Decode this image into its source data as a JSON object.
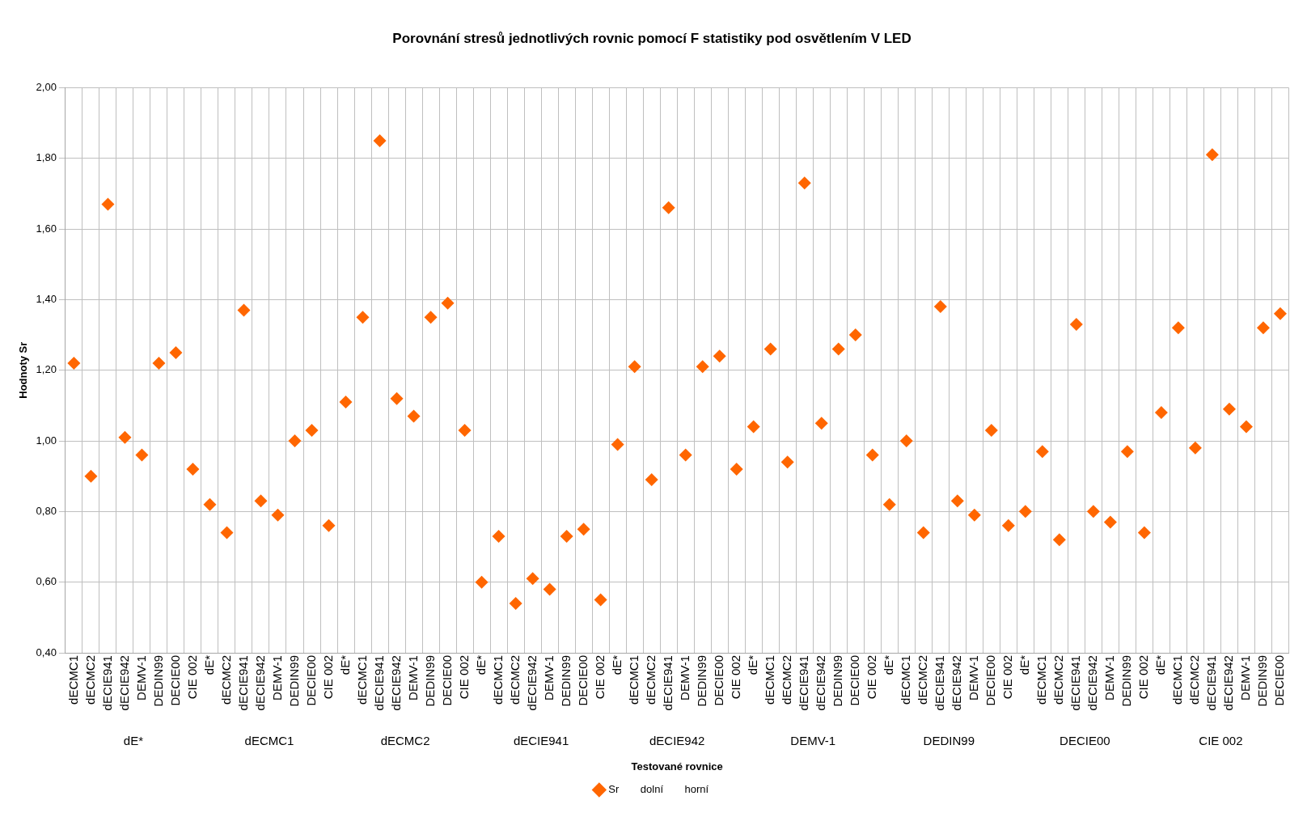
{
  "chart_data": {
    "type": "scatter",
    "title": "Porovnání stresů jednotlivých rovnic pomocí F statistiky pod osvětlením V LED",
    "xlabel": "Testované rovnice",
    "ylabel": "Hodnoty Sr",
    "categories": [
      "dECMC1",
      "dECMC2",
      "dECIE941",
      "dECIE942",
      "DEMV-1",
      "DEDIN99",
      "DECIE00",
      "CIE 002",
      "dE*",
      "dECMC2",
      "dECIE941",
      "dECIE942",
      "DEMV-1",
      "DEDIN99",
      "DECIE00",
      "CIE 002",
      "dE*",
      "dECMC1",
      "dECIE941",
      "dECIE942",
      "DEMV-1",
      "DEDIN99",
      "DECIE00",
      "CIE 002",
      "dE*",
      "dECMC1",
      "dECMC2",
      "dECIE942",
      "DEMV-1",
      "DEDIN99",
      "DECIE00",
      "CIE 002",
      "dE*",
      "dECMC1",
      "dECMC2",
      "dECIE941",
      "DEMV-1",
      "DEDIN99",
      "DECIE00",
      "CIE 002",
      "dE*",
      "dECMC1",
      "dECMC2",
      "dECIE941",
      "dECIE942",
      "DEDIN99",
      "DECIE00",
      "CIE 002",
      "dE*",
      "dECMC1",
      "dECMC2",
      "dECIE941",
      "dECIE942",
      "DEMV-1",
      "DECIE00",
      "CIE 002",
      "dE*",
      "dECMC1",
      "dECMC2",
      "dECIE941",
      "dECIE942",
      "DEMV-1",
      "DEDIN99",
      "CIE 002",
      "dE*",
      "dECMC1",
      "dECMC2",
      "dECIE941",
      "dECIE942",
      "DEMV-1",
      "DEDIN99",
      "DECIE00"
    ],
    "annotations": [
      "dE*",
      "dECMC1",
      "dECMC2",
      "dECIE941",
      "dECIE942",
      "DEMV-1",
      "DEDIN99",
      "DECIE00",
      "CIE 002"
    ],
    "series": [
      {
        "name": "Sr",
        "color": "#ff6600",
        "values": [
          1.22,
          0.9,
          1.67,
          1.01,
          0.96,
          1.22,
          1.25,
          0.92,
          0.82,
          0.74,
          1.37,
          0.83,
          0.79,
          1.0,
          1.03,
          0.76,
          1.11,
          1.35,
          1.85,
          1.12,
          1.07,
          1.35,
          1.39,
          1.03,
          0.6,
          0.73,
          0.54,
          0.61,
          0.58,
          0.73,
          0.75,
          0.55,
          0.99,
          1.21,
          0.89,
          1.66,
          0.96,
          1.21,
          1.24,
          0.92,
          1.04,
          1.26,
          0.94,
          1.73,
          1.05,
          1.26,
          1.3,
          0.96,
          0.82,
          1.0,
          0.74,
          1.38,
          0.83,
          0.79,
          1.03,
          0.76,
          0.8,
          0.97,
          0.72,
          1.33,
          0.8,
          0.77,
          0.97,
          0.74,
          1.08,
          1.32,
          0.98,
          1.81,
          1.09,
          1.04,
          1.32,
          1.36
        ]
      },
      {
        "name": "dolní",
        "values": [
          null,
          null,
          null,
          null,
          null,
          null,
          null,
          null,
          null,
          null,
          null,
          null,
          null,
          null,
          null,
          null,
          null,
          null,
          null,
          null,
          null,
          null,
          null,
          null,
          null,
          null,
          null,
          null,
          null,
          null,
          null,
          null,
          null,
          null,
          null,
          null,
          null,
          null,
          null,
          null,
          null,
          null,
          null,
          null,
          null,
          null,
          null,
          null,
          null,
          null,
          null,
          null,
          null,
          null,
          null,
          null,
          null,
          null,
          null,
          null,
          null,
          null,
          null,
          null,
          null,
          null,
          null,
          null,
          null,
          null,
          null,
          null
        ]
      },
      {
        "name": "horní",
        "values": [
          null,
          null,
          null,
          null,
          null,
          null,
          null,
          null,
          null,
          null,
          null,
          null,
          null,
          null,
          null,
          null,
          null,
          null,
          null,
          null,
          null,
          null,
          null,
          null,
          null,
          null,
          null,
          null,
          null,
          null,
          null,
          null,
          null,
          null,
          null,
          null,
          null,
          null,
          null,
          null,
          null,
          null,
          null,
          null,
          null,
          null,
          null,
          null,
          null,
          null,
          null,
          null,
          null,
          null,
          null,
          null,
          null,
          null,
          null,
          null,
          null,
          null,
          null,
          null,
          null,
          null,
          null,
          null,
          null,
          null,
          null,
          null
        ]
      }
    ],
    "ylim": [
      0.4,
      2.0
    ],
    "yticks": [
      {
        "value": 0.4,
        "label": "0,40"
      },
      {
        "value": 0.6,
        "label": "0,60"
      },
      {
        "value": 0.8,
        "label": "0,80"
      },
      {
        "value": 1.0,
        "label": "1,00"
      },
      {
        "value": 1.2,
        "label": "1,20"
      },
      {
        "value": 1.4,
        "label": "1,40"
      },
      {
        "value": 1.6,
        "label": "1,60"
      },
      {
        "value": 1.8,
        "label": "1,80"
      },
      {
        "value": 2.0,
        "label": "2,00"
      }
    ],
    "grid": true,
    "legend": "bottom",
    "marker": "diamond"
  }
}
